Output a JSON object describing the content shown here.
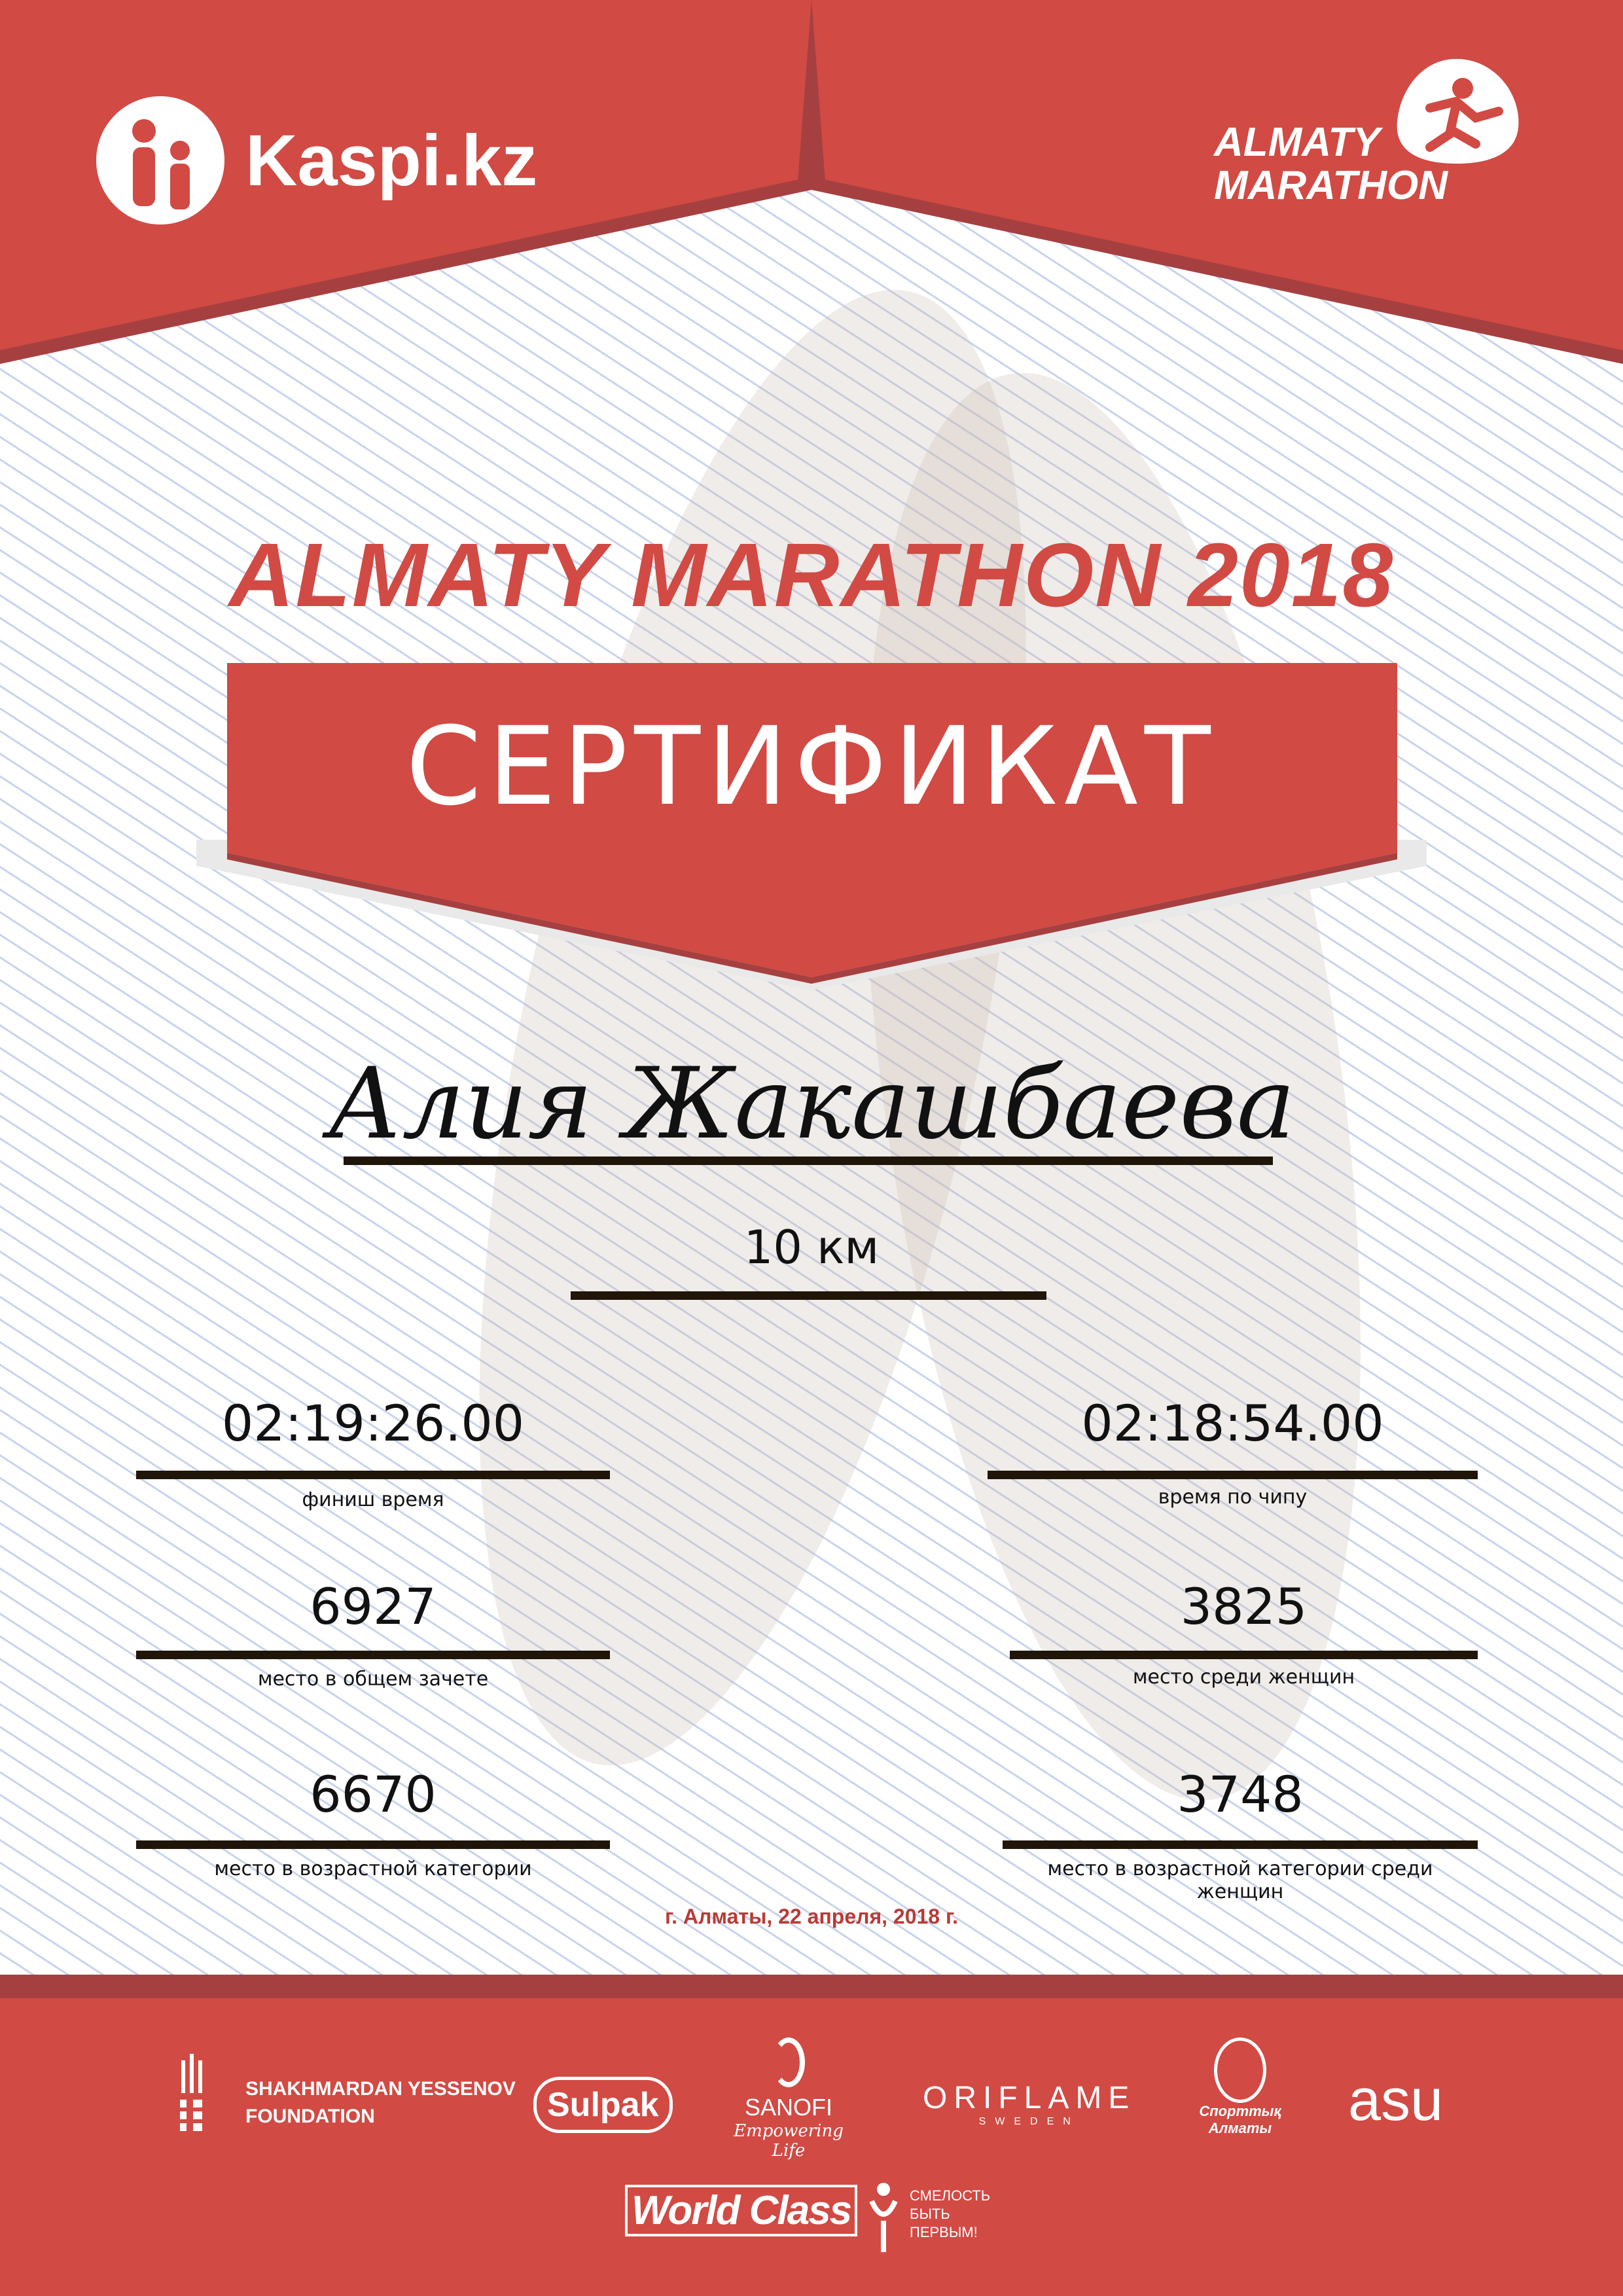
{
  "header": {
    "left_logo": "Kaspi.kz",
    "right_logo": [
      "ALMATY",
      "MARATHON"
    ]
  },
  "event_title": "ALMATY MARATHON 2018",
  "certificate_label": "СЕРТИФИКАТ",
  "participant_name": "Алия Жакашбаева",
  "distance": "10 км",
  "results": {
    "finish_time": {
      "value": "02:19:26.00",
      "label": "финиш время"
    },
    "chip_time": {
      "value": "02:18:54.00",
      "label": "время по чипу"
    },
    "overall_place": {
      "value": "6927",
      "label": "место в общем зачете"
    },
    "women_place": {
      "value": "3825",
      "label": "место среди женщин"
    },
    "age_place": {
      "value": "6670",
      "label": "место в возрастной категории"
    },
    "age_women_place": {
      "value": "3748",
      "label": "место в возрастной категории среди женщин"
    }
  },
  "date_line": "г. Алматы, 22 апреля, 2018 г.",
  "sponsors": {
    "yessenov": [
      "SHAKHMARDAN YESSENOV",
      "FOUNDATION"
    ],
    "sulpak": "Sulpak",
    "sanofi": [
      "SANOFI",
      "Empowering Life"
    ],
    "oriflame": [
      "ORIFLAME",
      "SWEDEN"
    ],
    "sport_almaty": [
      "Спорттық",
      "Алматы"
    ],
    "asu": "asu",
    "world_class": "World Class",
    "fund": [
      "СМЕЛОСТЬ",
      "БЫТЬ",
      "ПЕРВЫМ!"
    ]
  },
  "colors": {
    "brand_red": "#d14a44",
    "dark_red": "#a64040",
    "line": "#1f1508",
    "date_red": "#b83b36"
  }
}
